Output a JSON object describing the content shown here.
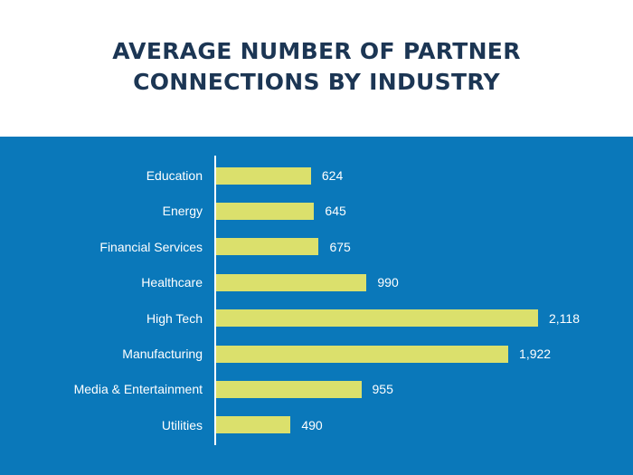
{
  "chart_data": {
    "type": "bar",
    "orientation": "horizontal",
    "title_lines": [
      "AVERAGE NUMBER OF PARTNER",
      "CONNECTIONS BY INDUSTRY"
    ],
    "categories": [
      "Education",
      "Energy",
      "Financial Services",
      "Healthcare",
      "High Tech",
      "Manufacturing",
      "Media & Entertainment",
      "Utilities"
    ],
    "values": [
      624,
      645,
      675,
      990,
      2118,
      1922,
      955,
      490
    ],
    "value_labels": [
      "624",
      "645",
      "675",
      "990",
      "2,118",
      "1,922",
      "955",
      "490"
    ],
    "xlim": [
      0,
      2118
    ],
    "grid": false,
    "legend": false
  },
  "colors": {
    "background_top": "#ffffff",
    "panel": "#0a78ba",
    "bar": "#dbe06c",
    "title": "#1c3654",
    "label": "#ffffff"
  }
}
